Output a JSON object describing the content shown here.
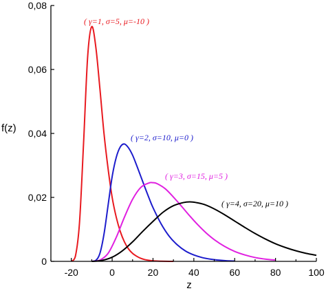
{
  "chart_data": {
    "type": "line",
    "xlabel": "z",
    "ylabel": "f(z)",
    "xlim": [
      -30,
      100
    ],
    "ylim": [
      0,
      0.08
    ],
    "grid": false,
    "x_ticks": [
      -20,
      0,
      20,
      40,
      60,
      80,
      100
    ],
    "x_tick_labels": [
      "-20",
      "0",
      "20",
      "40",
      "60",
      "80",
      "100"
    ],
    "y_ticks": [
      0,
      0.02,
      0.04,
      0.06,
      0.08
    ],
    "y_tick_labels": [
      "0",
      "0,02",
      "0,04",
      "0,06",
      "0,08"
    ],
    "series": [
      {
        "annotation": "( γ=1, σ=5, μ=-10 )",
        "color": "#e8191f",
        "x": [
          -20,
          -18,
          -16,
          -14,
          -12,
          -10,
          -8,
          -6,
          -4,
          -2,
          0,
          2,
          4,
          6,
          8,
          10,
          12,
          14,
          16,
          18,
          20,
          22,
          24,
          26,
          28,
          30
        ],
        "y": [
          0,
          0.0016,
          0.012,
          0.037,
          0.064,
          0.0734,
          0.067,
          0.054,
          0.04,
          0.029,
          0.02,
          0.0138,
          0.0093,
          0.0061,
          0.0039,
          0.0025,
          0.0016,
          0.00095,
          0.00055,
          0.00032,
          0.00018,
          0.0001,
          6e-05,
          3e-05,
          1e-05,
          0
        ]
      },
      {
        "annotation": "( γ=2, σ=10, μ=0 )",
        "color": "#1c1ccc",
        "x": [
          -10,
          -8,
          -6,
          -4,
          -2,
          0,
          2,
          4,
          6,
          8,
          10,
          12,
          14,
          16,
          18,
          20,
          24,
          28,
          32,
          36,
          40,
          44,
          48,
          52,
          56,
          60
        ],
        "y": [
          0,
          0.0003,
          0.0025,
          0.0085,
          0.0175,
          0.0265,
          0.0325,
          0.0358,
          0.0367,
          0.0355,
          0.0332,
          0.03,
          0.0266,
          0.0232,
          0.0199,
          0.0168,
          0.0117,
          0.0078,
          0.0051,
          0.0032,
          0.002,
          0.0012,
          0.0007,
          0.0004,
          0.0002,
          0.0001
        ]
      },
      {
        "annotation": "( γ=3, σ=15, μ=5 )",
        "color": "#e020e0",
        "x": [
          -10,
          -6,
          -2,
          2,
          6,
          10,
          14,
          18,
          20,
          22,
          26,
          30,
          34,
          38,
          42,
          46,
          50,
          55,
          60,
          65,
          70,
          75,
          80
        ],
        "y": [
          0,
          0.0004,
          0.0025,
          0.0075,
          0.0138,
          0.0194,
          0.0231,
          0.0245,
          0.0246,
          0.0243,
          0.0227,
          0.0201,
          0.0172,
          0.0142,
          0.0114,
          0.0089,
          0.0068,
          0.0047,
          0.0031,
          0.002,
          0.0012,
          0.0007,
          0.0004
        ]
      },
      {
        "annotation": "( γ=4, σ=20, μ=10 )",
        "color": "#000000",
        "x": [
          -10,
          -5,
          0,
          5,
          10,
          15,
          20,
          25,
          30,
          35,
          38,
          41,
          45,
          50,
          55,
          60,
          65,
          70,
          75,
          80,
          85,
          90,
          95,
          100
        ],
        "y": [
          0,
          0.0003,
          0.0013,
          0.0033,
          0.0061,
          0.0094,
          0.0125,
          0.0154,
          0.0174,
          0.0184,
          0.0186,
          0.0184,
          0.0178,
          0.0164,
          0.0146,
          0.0126,
          0.0106,
          0.0087,
          0.007,
          0.0055,
          0.0043,
          0.0033,
          0.0025,
          0.0019
        ]
      }
    ]
  }
}
